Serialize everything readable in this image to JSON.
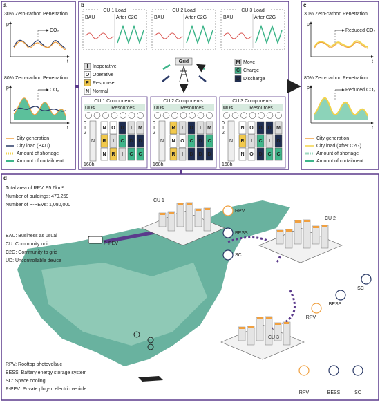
{
  "panel_a": {
    "label": "a",
    "top": {
      "title": "30% Zero-carbon Penetration",
      "y_axis": "p",
      "x_axis": "t",
      "annotation": "CO₂"
    },
    "bottom": {
      "title": "80% Zero-carbon Penetration",
      "y_axis": "p",
      "x_axis": "t",
      "annotation": "CO₂"
    },
    "legend": [
      "City generation",
      "City load (BAU)",
      "Amount of shortage",
      "Amount of curtailment"
    ]
  },
  "panel_b": {
    "label": "b",
    "loads": [
      {
        "title": "CU 1 Load",
        "left": "BAU",
        "right": "After C2G"
      },
      {
        "title": "CU 2 Load",
        "left": "BAU",
        "right": "After C2G"
      },
      {
        "title": "CU 3 Load",
        "left": "BAU",
        "right": "After C2G"
      }
    ],
    "grid": "Grid",
    "states": [
      {
        "key": "I",
        "name": "Inoperative"
      },
      {
        "key": "O",
        "name": "Operative"
      },
      {
        "key": "R",
        "name": "Response"
      },
      {
        "key": "N",
        "name": "Normal"
      },
      {
        "key": "M",
        "name": "Move"
      },
      {
        "key": "C",
        "name": "Charge"
      },
      {
        "key": "D",
        "name": "Discharge"
      }
    ],
    "components": [
      {
        "title": "CU 1 Components",
        "uds": "UDs",
        "resources": "Resources",
        "rows": [
          "0",
          "1",
          "2"
        ],
        "end": "168h",
        "ud": "N",
        "columns": [
          [
            "N",
            "R",
            "N"
          ],
          [
            "O",
            "I",
            "R"
          ],
          [
            "D",
            "C",
            "I"
          ],
          [
            "I",
            "D",
            "C"
          ],
          [
            "M",
            "D",
            "C"
          ]
        ]
      },
      {
        "title": "CU 2 Components",
        "uds": "UDs",
        "resources": "Resources",
        "rows": [
          "0",
          "1",
          "2"
        ],
        "end": "168h",
        "ud": "N",
        "columns": [
          [
            "R",
            "N",
            "R"
          ],
          [
            "I",
            "O",
            "I"
          ],
          [
            "D",
            "C",
            "D"
          ],
          [
            "I",
            "D",
            "D"
          ],
          [
            "M",
            "C",
            "D"
          ]
        ]
      },
      {
        "title": "CU 3 Components",
        "uds": "UDs",
        "resources": "Resources",
        "rows": [
          "0",
          "1",
          "2"
        ],
        "end": "168h",
        "ud": "N",
        "columns": [
          [
            "N",
            "R",
            "N"
          ],
          [
            "O",
            "I",
            "O"
          ],
          [
            "D",
            "C",
            "D"
          ],
          [
            "D",
            "I",
            "C"
          ],
          [
            "M",
            "D",
            "C"
          ]
        ]
      }
    ]
  },
  "panel_c": {
    "label": "c",
    "top": {
      "title": "30% Zero-carbon Penetration",
      "y_axis": "p",
      "x_axis": "t",
      "annotation": "Reduced CO₂"
    },
    "bottom": {
      "title": "80% Zero-carbon Penetration",
      "y_axis": "p",
      "x_axis": "t",
      "annotation": "Reduced CO₂"
    },
    "legend": [
      "City generation",
      "City load (After C2G)",
      "Amount of shortage",
      "Amount of curtailment"
    ]
  },
  "panel_d": {
    "label": "d",
    "stats": [
      "Total area of RPV: 95.6km²",
      "Number of buildings: 479,259",
      "Number of P-PEVs: 1,080,000"
    ],
    "abbreviations": [
      "BAU: Business as usual",
      "CU: Community unit",
      "C2G: Community to grid",
      "UD: Uncontrollable device"
    ],
    "vehicle": "P-PEV",
    "units": [
      {
        "name": "CU 1",
        "rpv": "RPV",
        "bess": "BESS",
        "sc": "SC"
      },
      {
        "name": "CU 2",
        "rpv": "RPV",
        "bess": "BESS",
        "sc": "SC"
      },
      {
        "name": "CU 3",
        "rpv": "RPV",
        "bess": "BESS",
        "sc": "SC"
      }
    ],
    "definitions": [
      "RPV: Rooftop photovoltaic",
      "BESS: Battery energy storage system",
      "SC: Space cooling",
      "P-PEV: Private plug-in electric vehicle"
    ]
  }
}
